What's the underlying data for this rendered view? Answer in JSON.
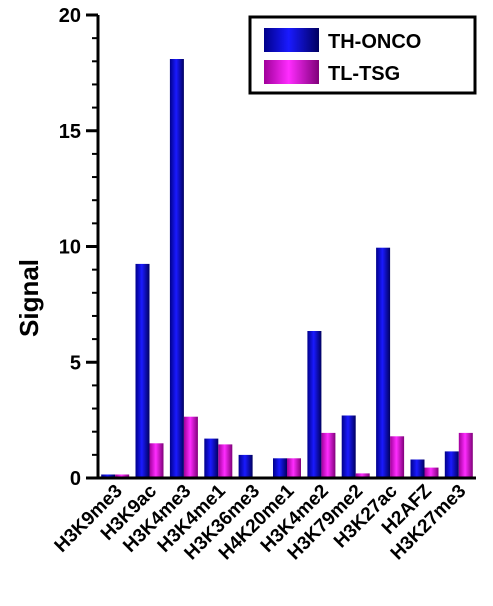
{
  "chart_data": {
    "type": "bar",
    "ylabel": "Signal",
    "xlabel": "",
    "ylim": [
      0,
      20
    ],
    "yticks": [
      "0",
      "5",
      "10",
      "15",
      "20"
    ],
    "grid": false,
    "legend_position": "top-right",
    "categories": [
      "H3K9me3",
      "H3K9ac",
      "H3K4me3",
      "H3K4me1",
      "H3K36me3",
      "H4K20me1",
      "H3K4me2",
      "H3K79me2",
      "H3K27ac",
      "H2AFZ",
      "H3K27me3"
    ],
    "series": [
      {
        "name": "TH-ONCO",
        "color": "#0000ff",
        "values": [
          0.15,
          9.25,
          18.1,
          1.7,
          1.0,
          0.85,
          6.35,
          2.7,
          9.95,
          0.8,
          1.15
        ]
      },
      {
        "name": "TL-TSG",
        "color": "#ff00ff",
        "values": [
          0.15,
          1.5,
          2.65,
          1.45,
          0.0,
          0.85,
          1.95,
          0.2,
          1.8,
          0.45,
          1.95
        ]
      }
    ]
  }
}
